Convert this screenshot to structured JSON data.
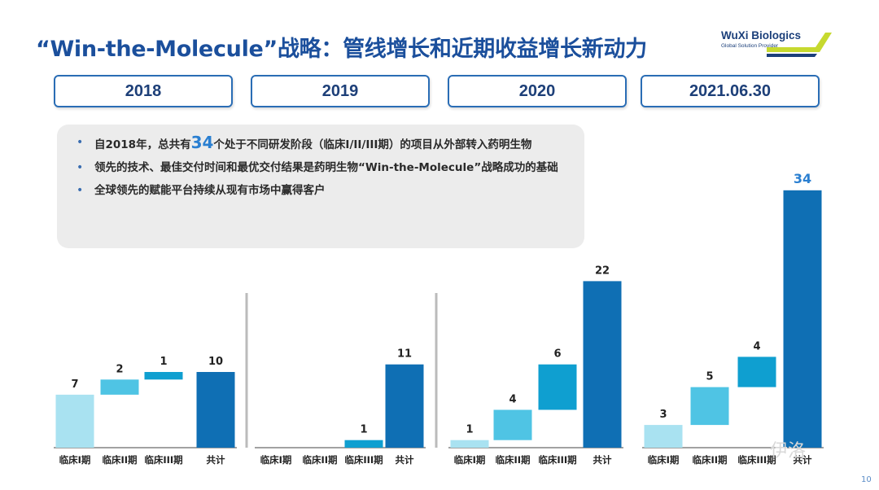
{
  "title": "“Win-the-Molecule”战略：管线增长和近期收益增长新动力",
  "logo": {
    "name": "WuXi Biologics",
    "tagline": "Global Solution Provider"
  },
  "years": [
    "2018",
    "2019",
    "2020",
    "2021.06.30"
  ],
  "bullets": {
    "b1_pre": "自2018年，总共有",
    "b1_num": "34",
    "b1_post": "个处于不同研发阶段（临床I/II/III期）的项目从外部转入药明生物",
    "b2": "领先的技术、最佳交付时间和最优交付结果是药明生物“Win-the-Molecule”战略成功的基础",
    "b3": "全球领先的赋能平台持续从现有市场中赢得客户"
  },
  "colors": {
    "phase1": "#a9e2f1",
    "phase2": "#4fc4e4",
    "phase3": "#0f9fd0",
    "total": "#0f6fb4",
    "highlight": "#2a7fd1"
  },
  "chart_data": {
    "type": "bar",
    "subtype": "waterfall",
    "categories": [
      "临床I期",
      "临床II期",
      "临床III期",
      "共计"
    ],
    "panels": [
      {
        "period": "2018",
        "values": [
          7,
          2,
          1,
          null
        ],
        "total": 10
      },
      {
        "period": "2019",
        "values": [
          0,
          0,
          1,
          null
        ],
        "total": 11
      },
      {
        "period": "2020",
        "values": [
          1,
          4,
          6,
          null
        ],
        "total": 22
      },
      {
        "period": "2021.06.30",
        "values": [
          3,
          5,
          4,
          null
        ],
        "total": 34
      }
    ]
  },
  "watermark": "伊洛",
  "page_number": "10"
}
